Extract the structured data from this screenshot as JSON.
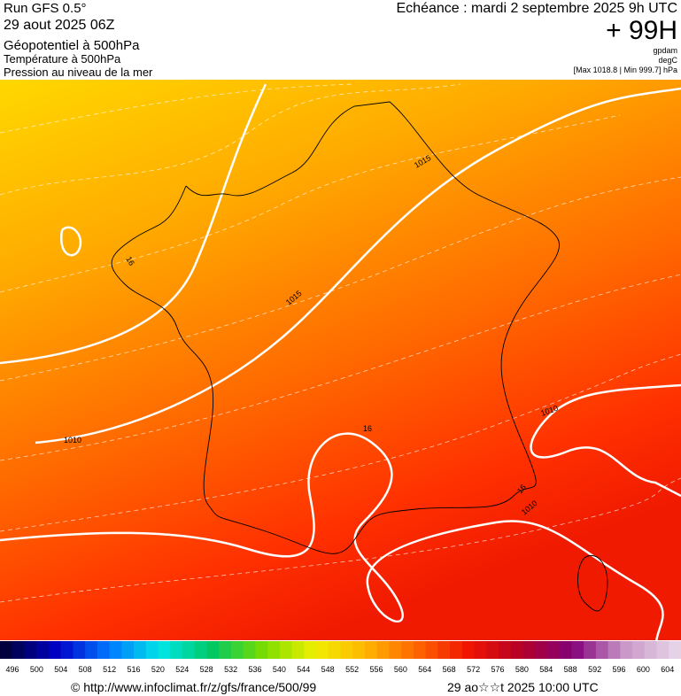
{
  "header": {
    "run": "Run GFS 0.5°",
    "date": "29 aout 2025 06Z",
    "fields": [
      "Géopotentiel à 500hPa",
      "Température à 500hPa",
      "Pression au niveau de la mer"
    ],
    "echeance": "Echéance : mardi 2 septembre 2025 9h UTC",
    "lead": "+ 99H",
    "units": [
      "gpdam",
      "degC",
      "[Max 1018.8 | Min 999.7] hPa"
    ]
  },
  "map": {
    "contour_labels": [
      "1010",
      "1015",
      "1015",
      "1010",
      "1010",
      "16",
      "16",
      "16"
    ]
  },
  "legend": {
    "labels": [
      496,
      500,
      504,
      508,
      512,
      516,
      520,
      524,
      528,
      532,
      536,
      540,
      544,
      548,
      552,
      556,
      560,
      564,
      568,
      572,
      576,
      580,
      584,
      588,
      592,
      596,
      600,
      604
    ]
  },
  "footer": {
    "url": "© http://www.infoclimat.fr/z/gfs/france/500/99",
    "generated": "29 ao☆☆t 2025 10:00 UTC"
  }
}
